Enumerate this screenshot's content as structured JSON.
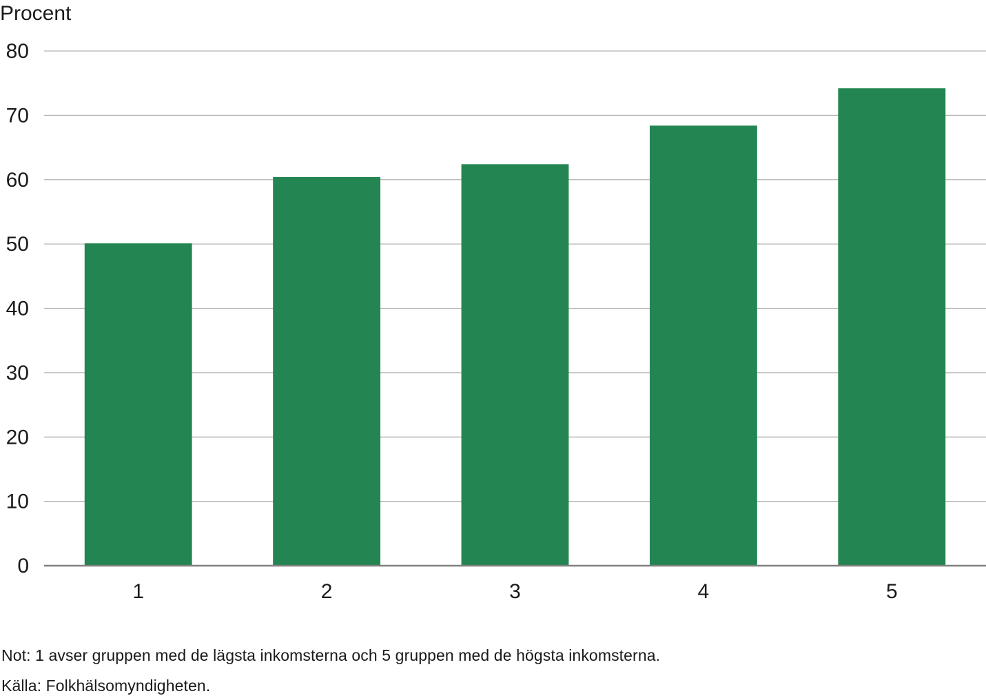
{
  "chart_data": {
    "type": "bar",
    "ylabel": "Procent",
    "xlabel": "",
    "categories": [
      "1",
      "2",
      "3",
      "4",
      "5"
    ],
    "values": [
      50.1,
      60.4,
      62.4,
      68.4,
      74.2
    ],
    "ylim": [
      0,
      80
    ],
    "yticks": [
      "0",
      "10",
      "20",
      "30",
      "40",
      "50",
      "60",
      "70",
      "80"
    ],
    "grid": true,
    "bar_color": "#238551",
    "grid_color": "#b3b3b3",
    "axis_color": "#808080"
  },
  "footer": {
    "note": "Not: 1 avser gruppen med de lägsta inkomsterna och 5 gruppen med de högsta inkomsterna.",
    "source": "Källa: Folkhälsomyndigheten."
  }
}
